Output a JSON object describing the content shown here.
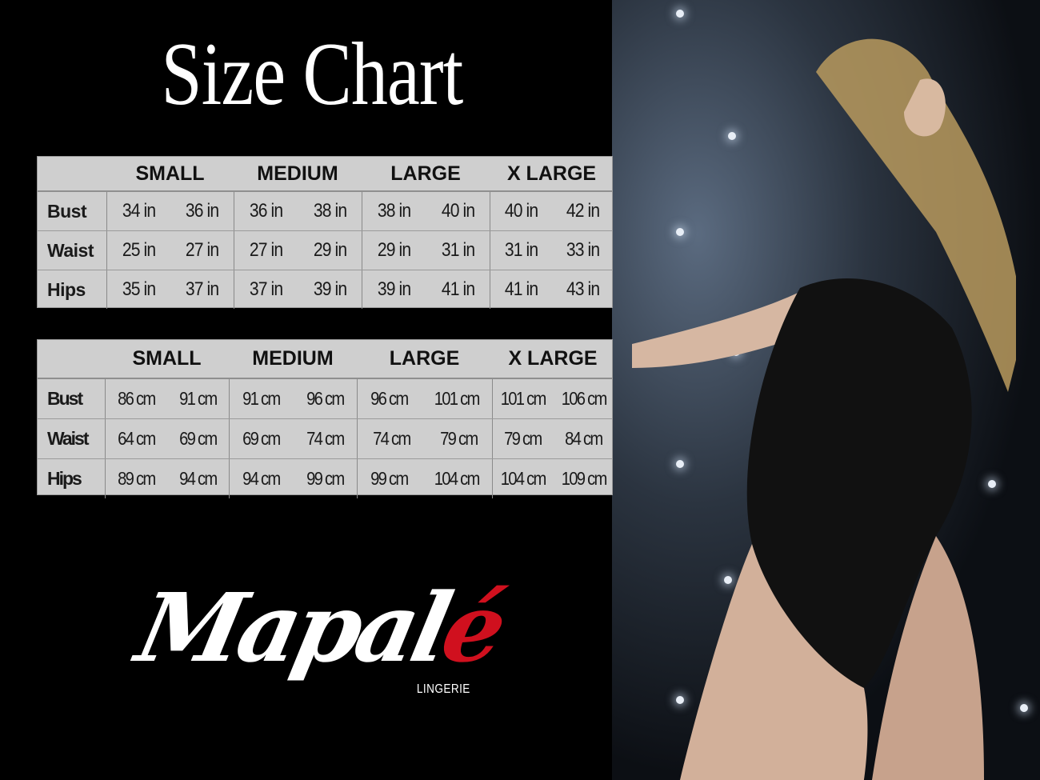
{
  "title": "Size Chart",
  "sizes": [
    "SMALL",
    "MEDIUM",
    "LARGE",
    "X LARGE"
  ],
  "imperial": {
    "rows": [
      {
        "label": "Bust",
        "values": [
          "34 in",
          "36 in",
          "36 in",
          "38 in",
          "38 in",
          "40 in",
          "40 in",
          "42 in"
        ]
      },
      {
        "label": "Waist",
        "values": [
          "25 in",
          "27 in",
          "27 in",
          "29 in",
          "29 in",
          "31 in",
          "31 in",
          "33 in"
        ]
      },
      {
        "label": "Hips",
        "values": [
          "35 in",
          "37 in",
          "37 in",
          "39 in",
          "39 in",
          "41 in",
          "41 in",
          "43 in"
        ]
      }
    ]
  },
  "metric": {
    "rows": [
      {
        "label": "Bust",
        "values": [
          "86 cm",
          "91 cm",
          "91 cm",
          "96 cm",
          "96 cm",
          "101 cm",
          "101 cm",
          "106 cm"
        ]
      },
      {
        "label": "Waist",
        "values": [
          "64 cm",
          "69 cm",
          "69 cm",
          "74 cm",
          "74 cm",
          "79  cm",
          "79 cm",
          "84 cm"
        ]
      },
      {
        "label": "Hips",
        "values": [
          "89 cm",
          "94 cm",
          "94 cm",
          "99 cm",
          "99 cm",
          "104 cm",
          "104 cm",
          "109 cm"
        ]
      }
    ]
  },
  "logo": {
    "main": "Mapal",
    "accent": "é",
    "sub": "LINGERIE",
    "accent_color": "#d0101e"
  }
}
